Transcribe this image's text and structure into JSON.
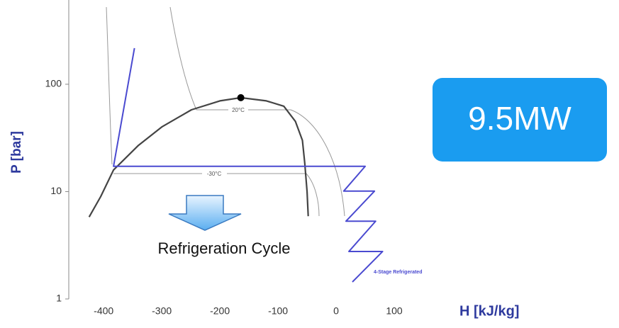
{
  "chart_data": {
    "type": "line",
    "x_label": "H [kJ/kg]",
    "y_label": "P [bar]",
    "xlim": [
      -460,
      150
    ],
    "xticks": [
      -400,
      -300,
      -200,
      -100,
      0,
      100
    ],
    "ylim": [
      1,
      600
    ],
    "yticks": [
      1,
      10,
      100
    ],
    "log_y": true,
    "series": [
      {
        "color": "#444444",
        "x": [
          -425,
          -405,
          -383,
          -340,
          -300,
          -249,
          -200,
          -164,
          -120,
          -90,
          -70,
          -58,
          -54,
          -50,
          -48
        ],
        "values": [
          5.8,
          9,
          15.9,
          27,
          40,
          57.8,
          70,
          75,
          70,
          62.4,
          45,
          30,
          18.5,
          10,
          5.9
        ]
      },
      {
        "name": "4-Stage Refrigerated",
        "color": "#4a4ad0",
        "x": [
          -347,
          -383,
          50,
          13,
          66,
          17,
          68,
          22,
          80,
          28
        ],
        "values": [
          217,
          17.2,
          17.2,
          10.1,
          10.1,
          5.3,
          5.3,
          2.77,
          2.77,
          1.44
        ]
      }
    ],
    "critical_point": {
      "x": -164,
      "value": 75
    },
    "annotations": [
      "20°C",
      "-30°C",
      "Refrigeration Cycle"
    ],
    "badge": "9.5MW"
  }
}
